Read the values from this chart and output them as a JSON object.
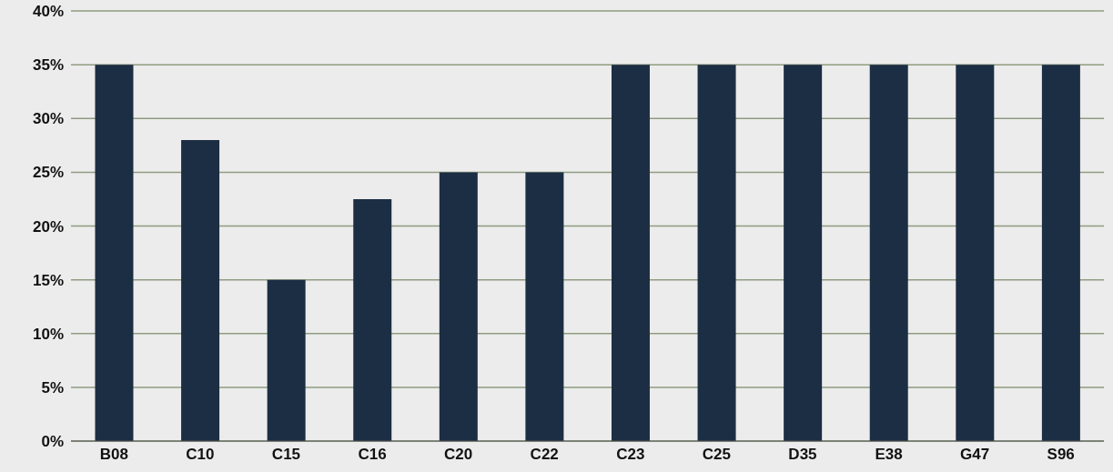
{
  "chart_data": {
    "type": "bar",
    "categories": [
      "B08",
      "C10",
      "C15",
      "C16",
      "C20",
      "C22",
      "C23",
      "C25",
      "D35",
      "E38",
      "G47",
      "S96"
    ],
    "values": [
      35,
      28,
      15,
      22.5,
      25,
      25,
      35,
      35,
      35,
      35,
      35,
      35
    ],
    "color": "#1c2e44",
    "ylim": [
      0,
      40
    ],
    "yticks": [
      {
        "value": 0,
        "label": "0%"
      },
      {
        "value": 5,
        "label": "5%"
      },
      {
        "value": 10,
        "label": "10%"
      },
      {
        "value": 15,
        "label": "15%"
      },
      {
        "value": 20,
        "label": "20%"
      },
      {
        "value": 25,
        "label": "25%"
      },
      {
        "value": 30,
        "label": "30%"
      },
      {
        "value": 35,
        "label": "35%"
      },
      {
        "value": 40,
        "label": "40%"
      }
    ],
    "grid": "y"
  }
}
